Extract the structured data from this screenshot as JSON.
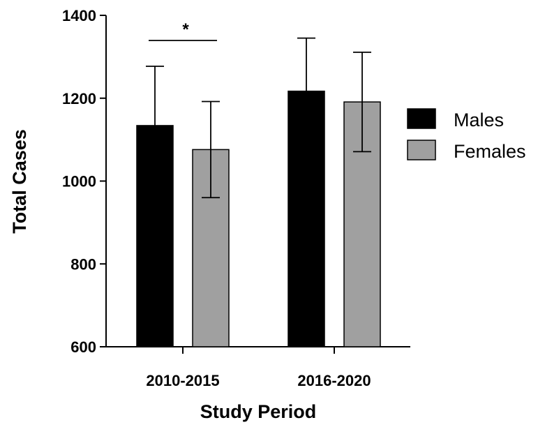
{
  "chart_data": {
    "type": "bar",
    "categories": [
      "2010-2015",
      "2016-2020"
    ],
    "series": [
      {
        "name": "Males",
        "color": "#000000",
        "values": [
          1134,
          1217
        ],
        "error": [
          143,
          128
        ]
      },
      {
        "name": "Females",
        "color": "#a0a0a0",
        "values": [
          1076,
          1191
        ],
        "error": [
          116,
          120
        ]
      }
    ],
    "xlabel": "Study Period",
    "ylabel": "Total Cases",
    "ylim": [
      600,
      1400
    ],
    "yticks": [
      600,
      800,
      1000,
      1200,
      1400
    ],
    "error_bars": "upper for Males, both directions for Females",
    "grid": false,
    "legend": "right",
    "annotations": [
      {
        "text": "*",
        "category": "2010-2015",
        "type": "significance-bracket"
      }
    ]
  }
}
